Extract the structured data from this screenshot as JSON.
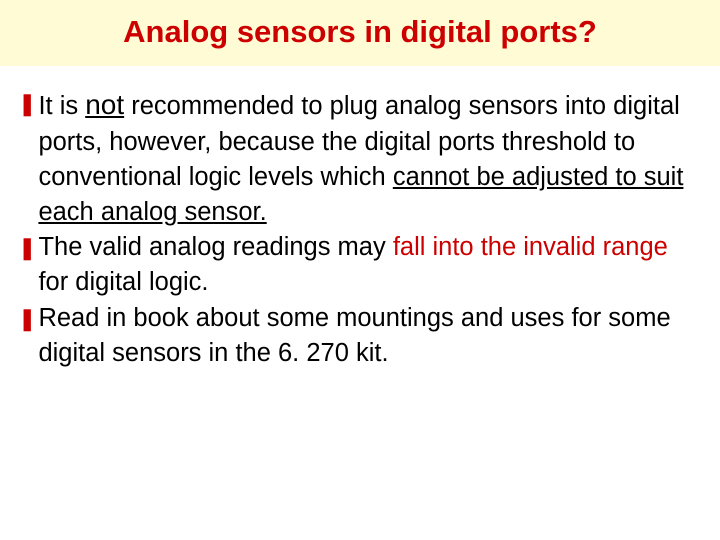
{
  "colors": {
    "title_bg": "#fffbd4",
    "title_text": "#cc0000",
    "body_text": "#000000",
    "bullet": "#cc0000",
    "accent_red": "#cc0000",
    "page_bg": "#ffffff"
  },
  "typography": {
    "title_fontsize": 31,
    "body_fontsize": 25.5,
    "not_fontsize": 28,
    "font_family": "Verdana"
  },
  "title": "Analog sensors in digital ports?",
  "bullet_glyph": "❚",
  "bullets": [
    {
      "t1": "It is ",
      "not": "not",
      "t2": " recommended to plug analog sensors into digital ports, however, because the digital ports threshold to conventional logic levels which ",
      "u1": "cannot be adjusted to suit each analog sensor."
    },
    {
      "t1": "The valid analog readings may ",
      "r1": "fall into the invalid range",
      "t2": " for digital logic."
    },
    {
      "t1": "Read in book about some mountings and uses for some digital sensors in the 6. 270 kit."
    }
  ]
}
